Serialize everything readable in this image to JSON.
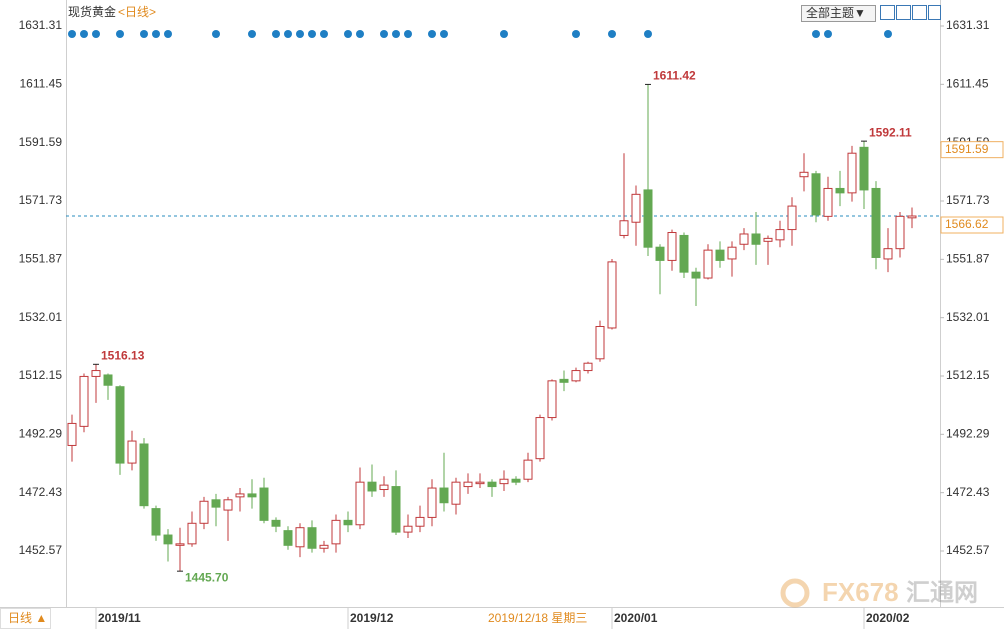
{
  "chart_data": {
    "type": "candlestick",
    "title": "现货黄金",
    "subtitle": "<日线>",
    "toolbar": "全部主题▼",
    "period_button": "日线 ▲",
    "crosshair_label": "2019/12/18 星期三",
    "watermark": [
      "FX678",
      "汇通网"
    ],
    "categories": [
      null,
      null,
      "2019/11",
      null,
      null,
      null,
      null,
      null,
      null,
      null,
      null,
      null,
      null,
      null,
      null,
      null,
      null,
      null,
      null,
      null,
      null,
      null,
      null,
      "2019/12",
      null,
      null,
      null,
      null,
      null,
      null,
      null,
      null,
      null,
      null,
      null,
      null,
      null,
      null,
      null,
      null,
      null,
      null,
      null,
      null,
      null,
      "2020/01",
      null,
      null,
      null,
      null,
      null,
      null,
      null,
      null,
      null,
      null,
      null,
      null,
      null,
      null,
      null,
      null,
      null,
      null,
      null,
      null,
      "2020/02",
      null,
      null,
      null,
      null
    ],
    "open": [
      1488.5,
      1495,
      1512,
      1512.5,
      1508.5,
      1482.5,
      1489,
      1467,
      1458,
      1454.5,
      1455,
      1462,
      1470,
      1466.5,
      1471,
      1472,
      1474,
      1463,
      1459.5,
      1454,
      1460.5,
      1453.5,
      1455,
      1463,
      1461.5,
      1476,
      1473.5,
      1474.5,
      1459,
      1461,
      1464,
      1474,
      1468.5,
      1474.5,
      1475.5,
      1476,
      1475.5,
      1477,
      1477,
      1484,
      1498,
      1511,
      1510.5,
      1514,
      1518,
      1528.5,
      1560,
      1564.5,
      1575.5,
      1556,
      1551.5,
      1560,
      1547.5,
      1545.5,
      1555,
      1552,
      1557,
      1560.5,
      1558,
      1558.5,
      1562,
      1580,
      1581,
      1566.5,
      1576,
      1574.5,
      1590,
      1576,
      1552,
      1555.5,
      1566
    ],
    "high": [
      1499,
      1513,
      1516.13,
      1513,
      1509,
      1493.5,
      1491,
      1468,
      1460,
      1460.5,
      1466,
      1471,
      1472,
      1471,
      1474,
      1477,
      1477.5,
      1464,
      1461,
      1462,
      1463,
      1456,
      1465,
      1466,
      1481,
      1482,
      1478,
      1480,
      1465,
      1468,
      1477,
      1486,
      1477.5,
      1479,
      1479,
      1477,
      1480,
      1478,
      1486,
      1499,
      1511,
      1514,
      1515,
      1517,
      1531,
      1552,
      1588,
      1577,
      1611.42,
      1557,
      1562,
      1561,
      1549,
      1557,
      1558,
      1558,
      1562.5,
      1568,
      1560,
      1565,
      1573,
      1588,
      1582,
      1580,
      1582,
      1590.5,
      1592.11,
      1578.5,
      1562.5,
      1568,
      1569.5
    ],
    "low": [
      1483,
      1493,
      1503,
      1504,
      1478.5,
      1480,
      1467,
      1456,
      1449,
      1445.7,
      1454,
      1460,
      1461,
      1456,
      1466,
      1467,
      1462,
      1459,
      1453,
      1450.5,
      1452,
      1452,
      1452,
      1459,
      1460,
      1471,
      1471,
      1458,
      1457,
      1459,
      1461,
      1466,
      1465,
      1472,
      1474,
      1471,
      1473,
      1475,
      1476,
      1483,
      1497,
      1507,
      1510,
      1513,
      1517,
      1528,
      1559,
      1556.5,
      1553,
      1540,
      1548,
      1545.5,
      1536,
      1545,
      1549,
      1546,
      1555,
      1550,
      1550,
      1556,
      1556.5,
      1575,
      1564.5,
      1565,
      1570,
      1571.5,
      1569,
      1548.5,
      1547.5,
      1552.5,
      1562.5
    ],
    "close": [
      1496,
      1512,
      1514,
      1509,
      1482.5,
      1490,
      1468,
      1458,
      1455,
      1455,
      1462,
      1469.5,
      1467.5,
      1470,
      1472,
      1471,
      1463,
      1461,
      1454.5,
      1460.5,
      1453.5,
      1454.5,
      1463,
      1461.5,
      1476,
      1473,
      1475,
      1459,
      1461,
      1464,
      1474,
      1469,
      1476,
      1476,
      1476,
      1474.5,
      1477,
      1476,
      1483.5,
      1498,
      1510.5,
      1510,
      1514,
      1516.5,
      1529,
      1551,
      1565,
      1574,
      1556,
      1551.5,
      1561,
      1547.5,
      1545.5,
      1555,
      1551.5,
      1556,
      1560.5,
      1557,
      1559,
      1562,
      1570,
      1581.5,
      1567,
      1576,
      1574.5,
      1588,
      1575.5,
      1552.5,
      1555.5,
      1566.5,
      1566.62
    ],
    "high_labels": [
      null,
      null,
      "1516.13",
      null,
      null,
      null,
      null,
      null,
      null,
      null,
      null,
      null,
      null,
      null,
      null,
      null,
      null,
      null,
      null,
      null,
      null,
      null,
      null,
      null,
      null,
      null,
      null,
      null,
      null,
      null,
      null,
      null,
      null,
      null,
      null,
      null,
      null,
      null,
      null,
      null,
      null,
      null,
      null,
      null,
      null,
      null,
      null,
      null,
      "1611.42",
      null,
      null,
      null,
      null,
      null,
      null,
      null,
      null,
      null,
      null,
      null,
      null,
      null,
      null,
      null,
      null,
      null,
      "1592.11",
      null,
      null,
      null,
      null
    ],
    "low_labels": [
      null,
      null,
      null,
      null,
      null,
      null,
      null,
      null,
      null,
      "1445.70",
      null,
      null,
      null,
      null,
      null,
      null,
      null,
      null,
      null,
      null,
      null,
      null,
      null,
      null,
      null,
      null,
      null,
      null,
      null,
      null,
      null,
      null,
      null,
      null,
      null,
      null,
      null,
      null,
      null,
      null,
      null,
      null,
      null,
      null,
      null,
      null,
      null,
      null,
      null,
      null,
      null,
      null,
      null,
      null,
      null,
      null,
      null,
      null,
      null,
      null,
      null,
      null,
      null,
      null,
      null,
      null,
      null,
      null,
      null,
      null,
      null
    ],
    "up_color": "#c0393b",
    "down_color": "#63a852",
    "last_price": 1566.62,
    "ref_price": 1591.59,
    "ylim": [
      1433.5,
      1638.8
    ],
    "yticks": [
      1452.57,
      1472.43,
      1492.29,
      1512.15,
      1532.01,
      1551.87,
      1571.73,
      1591.59,
      1611.45,
      1631.31
    ]
  }
}
